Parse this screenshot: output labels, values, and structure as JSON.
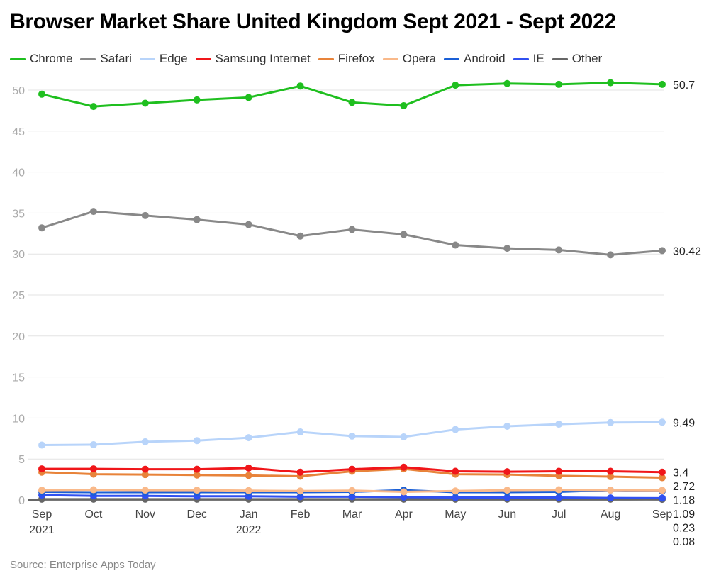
{
  "chart_data": {
    "type": "line",
    "title": "Browser Market Share United Kingdom Sept 2021 - Sept 2022",
    "source": "Source: Enterprise Apps Today",
    "categories": [
      "Sep",
      "Oct",
      "Nov",
      "Dec",
      "Jan",
      "Feb",
      "Mar",
      "Apr",
      "May",
      "Jun",
      "Jul",
      "Aug",
      "Sep"
    ],
    "year_labels": {
      "0": "2021",
      "4": "2022"
    },
    "ylim": [
      0,
      50
    ],
    "yticks": [
      0,
      5,
      10,
      15,
      20,
      25,
      30,
      35,
      40,
      45,
      50
    ],
    "grid": true,
    "legend": "top",
    "series": [
      {
        "name": "Chrome",
        "color": "#1fbf1f",
        "values": [
          49.5,
          48.0,
          48.4,
          48.8,
          49.1,
          50.5,
          48.5,
          48.1,
          50.6,
          50.8,
          50.7,
          50.9,
          50.7
        ],
        "end_label": "50.7"
      },
      {
        "name": "Safari",
        "color": "#888888",
        "values": [
          33.2,
          35.2,
          34.7,
          34.2,
          33.6,
          32.2,
          33.0,
          32.4,
          31.1,
          30.7,
          30.5,
          29.9,
          30.42
        ],
        "end_label": "30.42"
      },
      {
        "name": "Edge",
        "color": "#b8d4fa",
        "values": [
          6.7,
          6.75,
          7.1,
          7.25,
          7.6,
          8.3,
          7.8,
          7.7,
          8.6,
          9.0,
          9.25,
          9.45,
          9.49
        ],
        "end_label": "9.49"
      },
      {
        "name": "Samsung Internet",
        "color": "#f0161a",
        "values": [
          3.8,
          3.8,
          3.75,
          3.75,
          3.9,
          3.4,
          3.75,
          4.0,
          3.5,
          3.45,
          3.5,
          3.5,
          3.4
        ],
        "end_label": "3.4"
      },
      {
        "name": "Firefox",
        "color": "#e8833a",
        "values": [
          3.4,
          3.15,
          3.1,
          3.05,
          3.0,
          2.9,
          3.5,
          3.8,
          3.15,
          3.1,
          2.95,
          2.85,
          2.72
        ],
        "end_label": "2.72"
      },
      {
        "name": "Opera",
        "color": "#f9b98a",
        "values": [
          1.2,
          1.25,
          1.2,
          1.2,
          1.15,
          1.1,
          1.15,
          1.0,
          1.1,
          1.2,
          1.25,
          1.2,
          1.18
        ],
        "end_label": "1.18"
      },
      {
        "name": "Android",
        "color": "#1a5fd6",
        "values": [
          1.0,
          0.95,
          0.95,
          0.95,
          0.95,
          0.95,
          1.0,
          1.2,
          0.95,
          0.95,
          1.0,
          1.2,
          1.09
        ],
        "end_label": "1.09"
      },
      {
        "name": "IE",
        "color": "#3050f0",
        "values": [
          0.6,
          0.5,
          0.5,
          0.45,
          0.45,
          0.4,
          0.4,
          0.35,
          0.3,
          0.3,
          0.3,
          0.25,
          0.23
        ],
        "end_label": "0.23"
      },
      {
        "name": "Other",
        "color": "#666666",
        "values": [
          0.1,
          0.1,
          0.1,
          0.1,
          0.1,
          0.1,
          0.1,
          0.1,
          0.1,
          0.1,
          0.1,
          0.1,
          0.08
        ],
        "end_label": "0.08"
      }
    ]
  }
}
